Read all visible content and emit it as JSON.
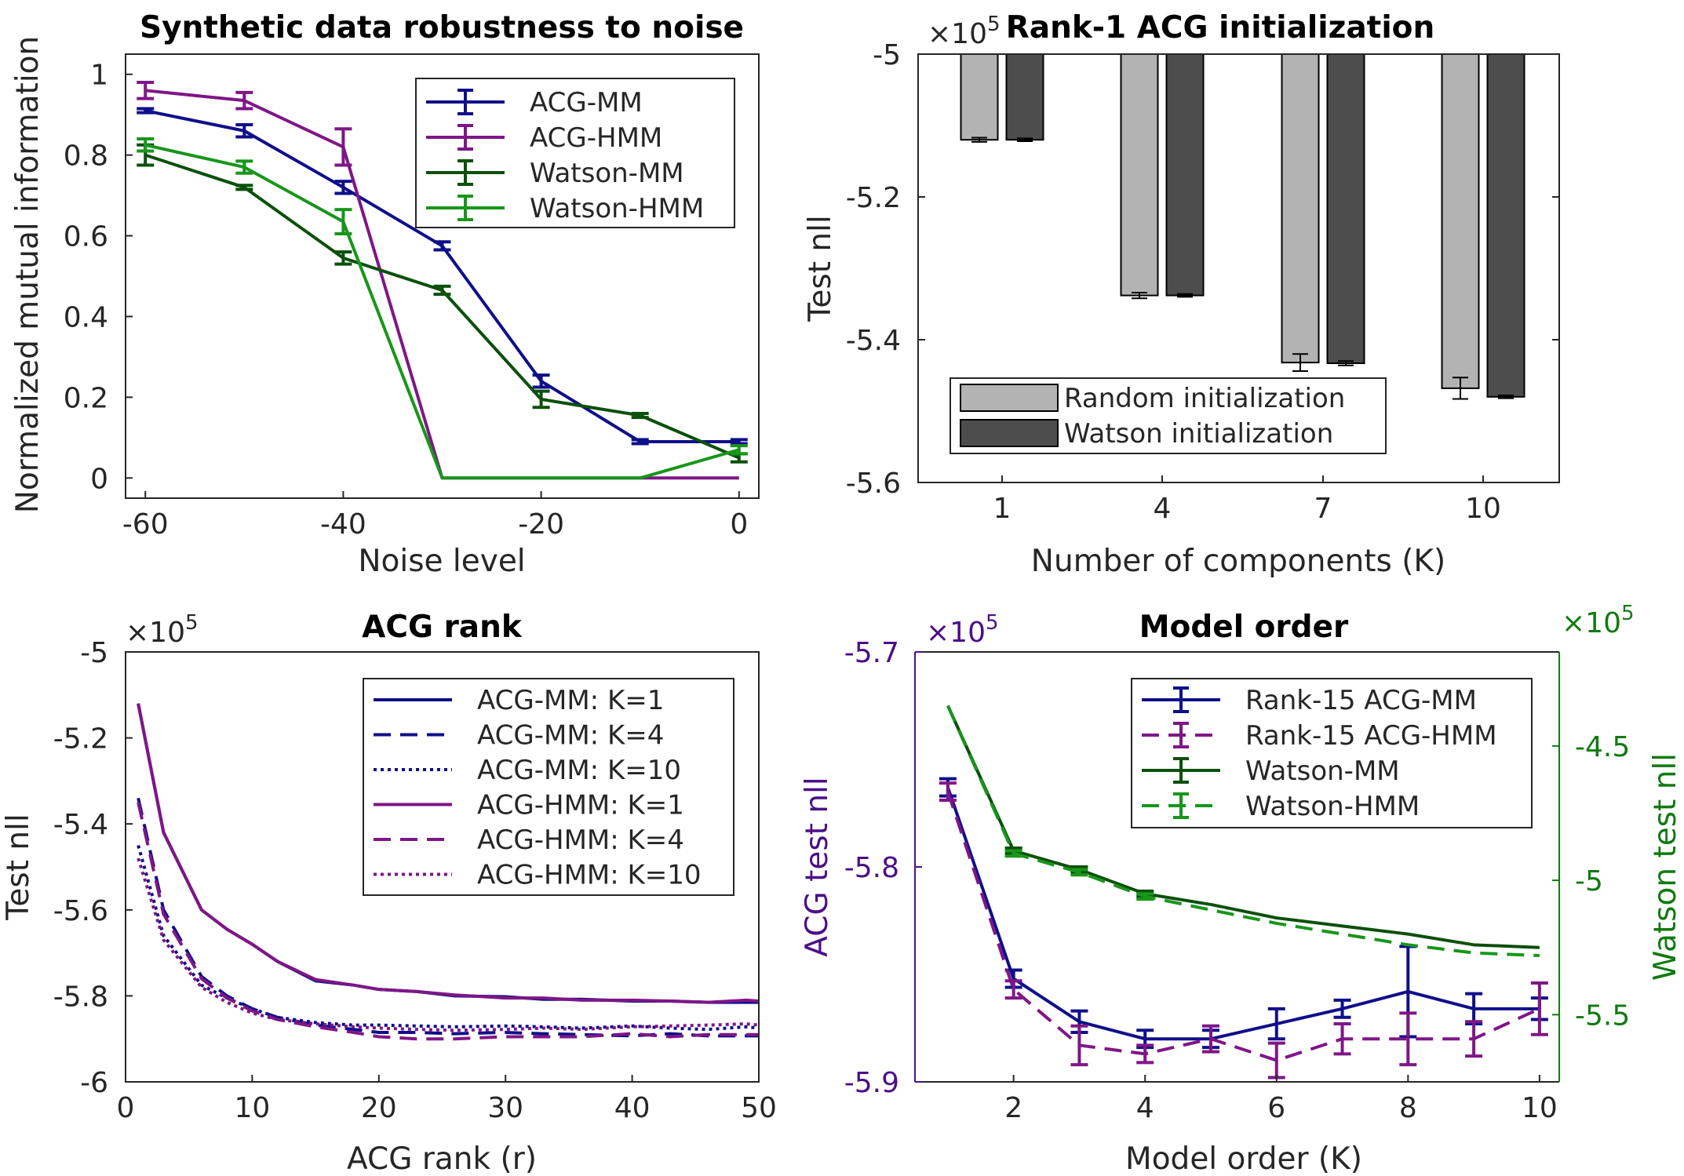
{
  "chart_data": [
    {
      "type": "line",
      "title": "Synthetic data robustness to noise",
      "xlabel": "Noise level",
      "ylabel": "Normalized mutual information",
      "xlim": [
        -62,
        2
      ],
      "ylim": [
        -0.05,
        1.05
      ],
      "xticks": [
        -60,
        -40,
        -20,
        0
      ],
      "yticks": [
        0,
        0.2,
        0.4,
        0.6,
        0.8,
        1
      ],
      "xtick_labels": [
        "-60",
        "-40",
        "-20",
        "0"
      ],
      "ytick_labels": [
        "0",
        "0.2",
        "0.4",
        "0.6",
        "0.8",
        "1"
      ],
      "legend_position": "top-right",
      "x": [
        -60,
        -50,
        -40,
        -30,
        -20,
        -10,
        0
      ],
      "series": [
        {
          "name": "ACG-MM",
          "color": "#0f0f8a",
          "values": [
            0.91,
            0.86,
            0.72,
            0.575,
            0.24,
            0.09,
            0.09
          ],
          "err": [
            0.005,
            0.015,
            0.015,
            0.01,
            0.015,
            0.005,
            0.005
          ]
        },
        {
          "name": "ACG-HMM",
          "color": "#7f1687",
          "values": [
            0.96,
            0.935,
            0.82,
            0.0,
            0.0,
            0.0,
            0.0
          ],
          "err": [
            0.02,
            0.02,
            0.045,
            0.0,
            0.0,
            0.0,
            0.0
          ]
        },
        {
          "name": "Watson-MM",
          "color": "#0b500b",
          "values": [
            0.8,
            0.72,
            0.545,
            0.465,
            0.195,
            0.155,
            0.05
          ],
          "err": [
            0.025,
            0.005,
            0.015,
            0.01,
            0.02,
            0.005,
            0.01
          ]
        },
        {
          "name": "Watson-HMM",
          "color": "#18961a",
          "values": [
            0.825,
            0.77,
            0.635,
            0.0,
            0.0,
            0.0,
            0.07
          ],
          "err": [
            0.015,
            0.015,
            0.03,
            0.0,
            0.0,
            0.0,
            0.01
          ]
        }
      ]
    },
    {
      "type": "bar",
      "title": "Rank-1 ACG initialization",
      "xlabel": "Number of components (K)",
      "ylabel": "Test nll",
      "exponent_label": "×10",
      "exponent_power": "5",
      "categories": [
        "1",
        "4",
        "7",
        "10"
      ],
      "ylim": [
        -5.6,
        -5.0
      ],
      "yticks": [
        -5.6,
        -5.4,
        -5.2,
        -5.0
      ],
      "ytick_labels": [
        "-5.6",
        "-5.4",
        "-5.2",
        "-5"
      ],
      "legend_position": "bottom-left",
      "series": [
        {
          "name": "Random initialization",
          "color": "#b3b3b3",
          "values": [
            -5.12,
            -5.338,
            -5.432,
            -5.468
          ],
          "err": [
            0.003,
            0.004,
            0.012,
            0.015
          ]
        },
        {
          "name": "Watson initialization",
          "color": "#4d4d4d",
          "values": [
            -5.12,
            -5.338,
            -5.433,
            -5.48
          ],
          "err": [
            0.002,
            0.002,
            0.003,
            0.002
          ]
        }
      ]
    },
    {
      "type": "line",
      "title": "ACG rank",
      "xlabel": "ACG rank (r)",
      "ylabel": "Test nll",
      "exponent_label": "×10",
      "exponent_power": "5",
      "xlim": [
        0,
        50
      ],
      "ylim": [
        -6.0,
        -5.0
      ],
      "xticks": [
        0,
        10,
        20,
        30,
        40,
        50
      ],
      "yticks": [
        -6,
        -5.8,
        -5.6,
        -5.4,
        -5.2,
        -5
      ],
      "xtick_labels": [
        "0",
        "10",
        "20",
        "30",
        "40",
        "50"
      ],
      "ytick_labels": [
        "-6",
        "-5.8",
        "-5.6",
        "-5.4",
        "-5.2",
        "-5"
      ],
      "legend_position": "top-right",
      "x": [
        1,
        3,
        6,
        8,
        10,
        12,
        15,
        18,
        20,
        23,
        26,
        30,
        33,
        36,
        40,
        43,
        46,
        49,
        50
      ],
      "series": [
        {
          "name": "ACG-MM: K=1",
          "color": "#0f0f8a",
          "dash": "solid",
          "values": [
            -5.12,
            -5.42,
            -5.6,
            -5.645,
            -5.68,
            -5.72,
            -5.765,
            -5.775,
            -5.785,
            -5.79,
            -5.8,
            -5.802,
            -5.808,
            -5.808,
            -5.812,
            -5.812,
            -5.815,
            -5.815,
            -5.815
          ]
        },
        {
          "name": "ACG-MM: K=4",
          "color": "#0f0f8a",
          "dash": "dashed",
          "values": [
            -5.34,
            -5.6,
            -5.755,
            -5.8,
            -5.83,
            -5.85,
            -5.868,
            -5.878,
            -5.885,
            -5.885,
            -5.888,
            -5.885,
            -5.888,
            -5.89,
            -5.893,
            -5.888,
            -5.893,
            -5.893,
            -5.893
          ]
        },
        {
          "name": "ACG-MM: K=10",
          "color": "#0f0f8a",
          "dash": "dotted",
          "values": [
            -5.45,
            -5.66,
            -5.775,
            -5.805,
            -5.83,
            -5.85,
            -5.862,
            -5.868,
            -5.868,
            -5.87,
            -5.872,
            -5.87,
            -5.872,
            -5.875,
            -5.87,
            -5.875,
            -5.878,
            -5.872,
            -5.875
          ]
        },
        {
          "name": "ACG-HMM: K=1",
          "color": "#7f1687",
          "dash": "solid",
          "values": [
            -5.12,
            -5.42,
            -5.6,
            -5.645,
            -5.68,
            -5.72,
            -5.762,
            -5.775,
            -5.785,
            -5.79,
            -5.798,
            -5.805,
            -5.805,
            -5.81,
            -5.81,
            -5.812,
            -5.815,
            -5.81,
            -5.812
          ]
        },
        {
          "name": "ACG-HMM: K=4",
          "color": "#7f1687",
          "dash": "dashed",
          "values": [
            -5.35,
            -5.61,
            -5.76,
            -5.805,
            -5.835,
            -5.855,
            -5.872,
            -5.885,
            -5.895,
            -5.9,
            -5.9,
            -5.895,
            -5.895,
            -5.895,
            -5.888,
            -5.895,
            -5.89,
            -5.89,
            -5.89
          ]
        },
        {
          "name": "ACG-HMM: K=10",
          "color": "#7f1687",
          "dash": "dotted",
          "values": [
            -5.48,
            -5.67,
            -5.78,
            -5.815,
            -5.84,
            -5.855,
            -5.865,
            -5.872,
            -5.875,
            -5.878,
            -5.88,
            -5.878,
            -5.875,
            -5.878,
            -5.872,
            -5.87,
            -5.868,
            -5.865,
            -5.868
          ]
        }
      ]
    },
    {
      "type": "line",
      "title": "Model order",
      "xlabel": "Model order (K)",
      "ylabel": "ACG test nll",
      "y2label": "Watson test nll",
      "exponent_label": "×10",
      "exponent_power": "5",
      "xlim": [
        0.5,
        10.3
      ],
      "ylim": [
        -5.9,
        -5.7
      ],
      "y2lim": [
        -5.75,
        -4.15
      ],
      "xticks": [
        2,
        4,
        6,
        8,
        10
      ],
      "yticks": [
        -5.9,
        -5.8,
        -5.7
      ],
      "y2ticks": [
        -5.5,
        -5.0,
        -4.5
      ],
      "xtick_labels": [
        "2",
        "4",
        "6",
        "8",
        "10"
      ],
      "ytick_labels": [
        "-5.9",
        "-5.8",
        "-5.7"
      ],
      "y2tick_labels": [
        "-5.5",
        "-5",
        "-4.5"
      ],
      "left_axis_color": "#4b0f87",
      "right_axis_color": "#117a11",
      "legend_position": "top-right",
      "x": [
        1,
        2,
        3,
        4,
        5,
        6,
        7,
        8,
        9,
        10
      ],
      "series": [
        {
          "name": "Rank-15 ACG-MM",
          "color": "#0f0f8a",
          "dash": "solid",
          "axis": "left",
          "values": [
            -5.763,
            -5.852,
            -5.872,
            -5.88,
            -5.88,
            -5.873,
            -5.866,
            -5.858,
            -5.866,
            -5.866
          ],
          "err": [
            0.004,
            0.004,
            0.005,
            0.004,
            0.004,
            0.007,
            0.004,
            0.021,
            0.007,
            0.005
          ]
        },
        {
          "name": "Rank-15 ACG-HMM",
          "color": "#7f1687",
          "dash": "dashed",
          "axis": "left",
          "values": [
            -5.765,
            -5.857,
            -5.883,
            -5.887,
            -5.88,
            -5.89,
            -5.88,
            -5.88,
            -5.88,
            -5.866
          ],
          "err": [
            0.004,
            0.004,
            0.009,
            0.004,
            0.006,
            0.008,
            0.007,
            0.012,
            0.008,
            0.012
          ]
        },
        {
          "name": "Watson-MM",
          "color": "#0b500b",
          "dash": "solid",
          "axis": "right",
          "values": [
            -4.35,
            -4.89,
            -4.96,
            -5.05,
            -5.09,
            -5.14,
            -5.17,
            -5.2,
            -5.24,
            -5.25
          ],
          "err": [
            0.0,
            0.01,
            0.01,
            0.01,
            0.0,
            0.0,
            0.0,
            0.0,
            0.0,
            0.0
          ]
        },
        {
          "name": "Watson-HMM",
          "color": "#18961a",
          "dash": "dashed",
          "axis": "right",
          "values": [
            -4.35,
            -4.9,
            -4.97,
            -5.06,
            -5.11,
            -5.16,
            -5.2,
            -5.24,
            -5.27,
            -5.28
          ],
          "err": [
            0.0,
            0.01,
            0.01,
            0.01,
            0.0,
            0.0,
            0.0,
            0.0,
            0.0,
            0.0
          ]
        }
      ]
    }
  ]
}
